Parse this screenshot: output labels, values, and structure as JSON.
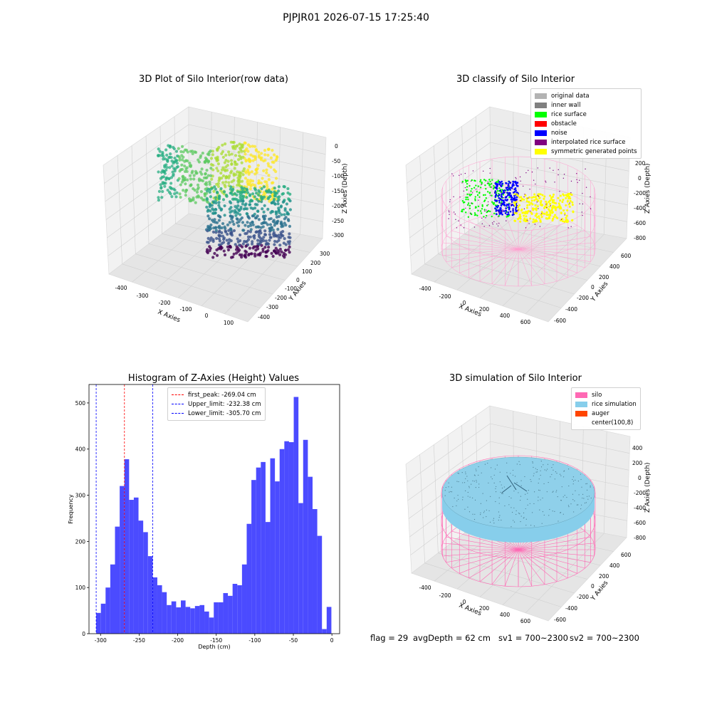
{
  "page": {
    "suptitle": "PJPJR01 2026-07-15 17:25:40",
    "status": {
      "flag": "flag = 29",
      "avg_depth": "avgDepth = 62 cm",
      "sv1": "sv1 = 700~2300",
      "sv2": "sv2 = 700~2300"
    }
  },
  "chart_data": [
    {
      "type": "scatter",
      "title": "3D Plot of Silo Interior(row data)",
      "xlabel": "X Axies",
      "ylabel": "Y Axies",
      "zlabel": "Z Axies (Depth)",
      "x_ticks": [
        "-400",
        "-300",
        "-200",
        "-100",
        "0",
        "100"
      ],
      "y_ticks": [
        "300",
        "200",
        "100",
        "0",
        "-100",
        "-200",
        "-300",
        "-400"
      ],
      "z_ticks": [
        "0",
        "-50",
        "-100",
        "-150",
        "-200",
        "-250",
        "-300"
      ],
      "colormap": "viridis"
    },
    {
      "type": "scatter",
      "title": "3D classify of Silo Interior",
      "xlabel": "X Axies",
      "ylabel": "Y Axies",
      "zlabel": "Z Axies (Depth)",
      "x_ticks": [
        "-400",
        "-200",
        "0",
        "200",
        "400",
        "600"
      ],
      "y_ticks": [
        "600",
        "400",
        "200",
        "0",
        "-200",
        "-400",
        "-600"
      ],
      "z_ticks": [
        "200",
        "0",
        "-200",
        "-400",
        "-600",
        "-800"
      ],
      "legend": [
        {
          "label": "original data",
          "color": "#b3b3b3"
        },
        {
          "label": "inner wall",
          "color": "#808080"
        },
        {
          "label": "rice surface",
          "color": "#00ff00"
        },
        {
          "label": "obstacle",
          "color": "#ff0000"
        },
        {
          "label": "noise",
          "color": "#0000ff"
        },
        {
          "label": "interpolated rice surface",
          "color": "#800080"
        },
        {
          "label": "symmetric generated points",
          "color": "#ffff00"
        }
      ]
    },
    {
      "type": "bar",
      "title": "Histogram of Z-Axies (Height) Values",
      "xlabel": "Depth (cm)",
      "ylabel": "Frequency",
      "xlim": [
        -315,
        10
      ],
      "ylim": [
        0,
        540
      ],
      "bin_start": -305.7,
      "bin_width": 6.1,
      "bar_color": "#4b4bff",
      "x_ticks": [
        "-300",
        "-250",
        "-200",
        "-150",
        "-100",
        "-50",
        "0"
      ],
      "x_tick_values": [
        -300,
        -250,
        -200,
        -150,
        -100,
        -50,
        0
      ],
      "y_ticks": [
        "0",
        "100",
        "200",
        "300",
        "400",
        "500"
      ],
      "y_tick_values": [
        0,
        100,
        200,
        300,
        400,
        500
      ],
      "values": [
        45,
        65,
        100,
        150,
        232,
        320,
        378,
        290,
        295,
        245,
        220,
        168,
        122,
        105,
        90,
        62,
        70,
        57,
        72,
        58,
        55,
        60,
        62,
        48,
        35,
        68,
        68,
        88,
        82,
        108,
        105,
        150,
        238,
        333,
        360,
        372,
        242,
        380,
        330,
        400,
        417,
        415,
        513,
        283,
        420,
        340,
        270,
        212,
        10,
        58
      ],
      "vlines": [
        {
          "label": "first_peak: -269.04 cm",
          "x": -269.04,
          "color": "#ff0000"
        },
        {
          "label": "Upper_limit: -232.38 cm",
          "x": -232.38,
          "color": "#0000ff"
        },
        {
          "label": "Lower_limit: -305.70 cm",
          "x": -305.7,
          "color": "#0000ff"
        }
      ]
    },
    {
      "type": "scatter",
      "title": "3D simulation of Silo Interior",
      "xlabel": "X Axies",
      "ylabel": "Y Axies",
      "zlabel": "Z Axies (Depth)",
      "x_ticks": [
        "-400",
        "-200",
        "0",
        "200",
        "400",
        "600"
      ],
      "y_ticks": [
        "600",
        "400",
        "200",
        "0",
        "-200",
        "-400",
        "-600"
      ],
      "z_ticks": [
        "400",
        "200",
        "0",
        "-200",
        "-400",
        "-600",
        "-800"
      ],
      "legend": [
        {
          "label": "silo",
          "color": "#ff69b4"
        },
        {
          "label": "rice simulation",
          "color": "#87ceeb"
        },
        {
          "label": "auger",
          "color": "#ff4500"
        },
        {
          "label": "center(100,8)",
          "color": "#ffffff"
        }
      ]
    }
  ]
}
